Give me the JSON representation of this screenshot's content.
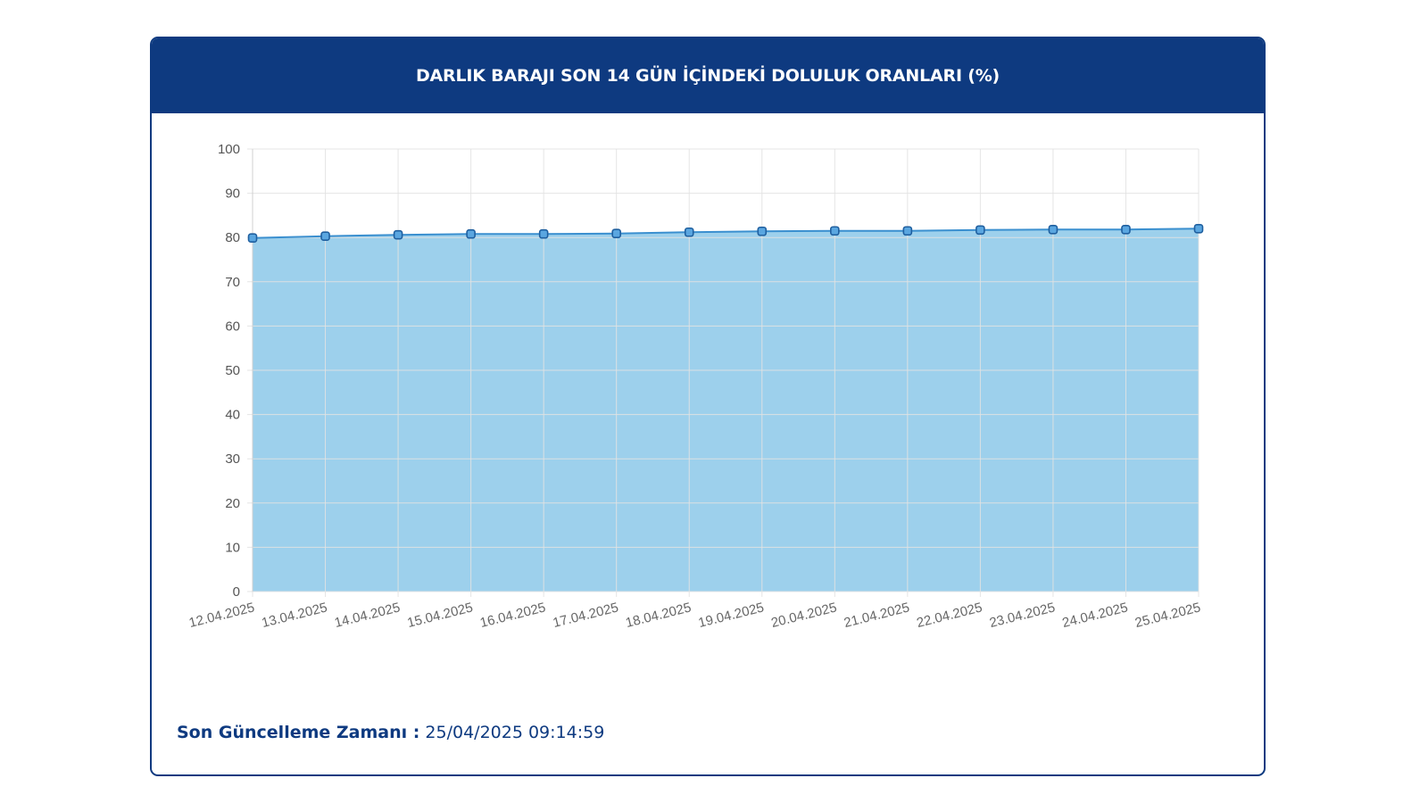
{
  "header": {
    "title": "DARLIK BARAJI SON 14 GÜN İÇİNDEKİ DOLULUK ORANLARI (%)"
  },
  "footer": {
    "label": "Son Güncelleme Zamanı :",
    "value": "25/04/2025 09:14:59"
  },
  "colors": {
    "header_bg": "#0e3a80",
    "area_fill": "#9dd0ec",
    "line": "#3a8fcf",
    "marker_fill": "#5aa6e0",
    "marker_stroke": "#1f5f9f",
    "grid": "#e2e2e2"
  },
  "chart_data": {
    "type": "area",
    "x": [
      "12.04.2025",
      "13.04.2025",
      "14.04.2025",
      "15.04.2025",
      "16.04.2025",
      "17.04.2025",
      "18.04.2025",
      "19.04.2025",
      "20.04.2025",
      "21.04.2025",
      "22.04.2025",
      "23.04.2025",
      "24.04.2025",
      "25.04.2025"
    ],
    "values": [
      79.9,
      80.3,
      80.6,
      80.8,
      80.8,
      80.9,
      81.2,
      81.4,
      81.5,
      81.5,
      81.7,
      81.8,
      81.8,
      82.0
    ],
    "ylim": [
      0,
      100
    ],
    "yticks": [
      0,
      10,
      20,
      30,
      40,
      50,
      60,
      70,
      80,
      90,
      100
    ],
    "grid": true,
    "markers": true,
    "title": "",
    "xlabel": "",
    "ylabel": ""
  }
}
